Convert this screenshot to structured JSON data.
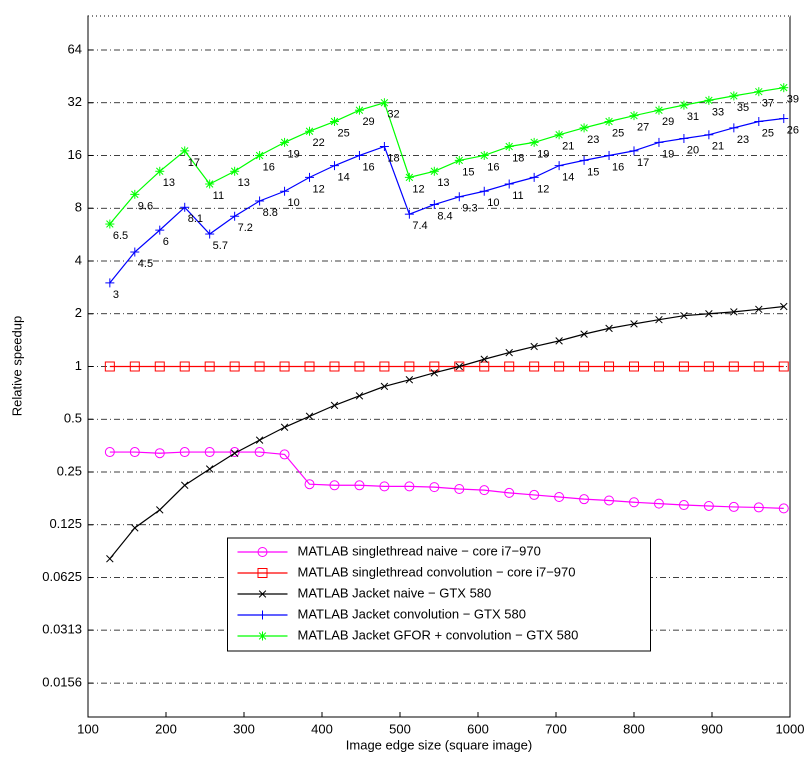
{
  "chart_data": {
    "type": "line",
    "x_label": "Image edge size (square image)",
    "y_label": "Relative speedup",
    "yscale": "log",
    "grid": true,
    "legend_loc": "lower center",
    "xlim": [
      100,
      1000
    ],
    "xticks": [
      100,
      200,
      300,
      400,
      500,
      600,
      700,
      800,
      900,
      1000
    ],
    "ylim": [
      0.01,
      100
    ],
    "yticks": [
      0.0156,
      0.0313,
      0.0625,
      0.125,
      0.25,
      0.5,
      1,
      2,
      4,
      8,
      16,
      32,
      64
    ],
    "x": [
      128,
      160,
      192,
      224,
      256,
      288,
      320,
      352,
      384,
      416,
      448,
      480,
      512,
      544,
      576,
      608,
      640,
      672,
      704,
      736,
      768,
      800,
      832,
      864,
      896,
      928,
      960,
      992
    ],
    "series": [
      {
        "name": "MATLAB singlethread naive − core i7−970",
        "color": "#ff00ff",
        "marker": "o",
        "data_labels": false,
        "values": [
          0.325,
          0.325,
          0.32,
          0.325,
          0.325,
          0.325,
          0.325,
          0.315,
          0.213,
          0.21,
          0.21,
          0.207,
          0.207,
          0.205,
          0.2,
          0.197,
          0.19,
          0.185,
          0.18,
          0.175,
          0.172,
          0.168,
          0.165,
          0.162,
          0.16,
          0.158,
          0.157,
          0.155
        ]
      },
      {
        "name": "MATLAB singlethread convolution − core i7−970",
        "color": "#ff0000",
        "marker": "s",
        "data_labels": false,
        "values": [
          1,
          1,
          1,
          1,
          1,
          1,
          1,
          1,
          1,
          1,
          1,
          1,
          1,
          1,
          1,
          1,
          1,
          1,
          1,
          1,
          1,
          1,
          1,
          1,
          1,
          1,
          1,
          1
        ]
      },
      {
        "name": "MATLAB Jacket naive − GTX 580",
        "color": "#000000",
        "marker": "x",
        "data_labels": false,
        "values": [
          0.08,
          0.12,
          0.152,
          0.21,
          0.26,
          0.32,
          0.38,
          0.45,
          0.52,
          0.6,
          0.68,
          0.77,
          0.84,
          0.92,
          1,
          1.1,
          1.2,
          1.3,
          1.4,
          1.53,
          1.65,
          1.75,
          1.85,
          1.95,
          2.0,
          2.05,
          2.12,
          2.2
        ]
      },
      {
        "name": "MATLAB Jacket convolution − GTX 580",
        "color": "#0000ff",
        "marker": "+",
        "data_labels": true,
        "values": [
          3,
          4.5,
          6,
          8.1,
          5.7,
          7.2,
          8.8,
          10,
          12,
          14,
          16,
          18,
          7.4,
          8.4,
          9.3,
          10,
          11,
          12,
          14,
          15,
          16,
          17,
          19,
          20,
          21,
          23,
          25,
          26
        ]
      },
      {
        "name": "MATLAB Jacket GFOR + convolution − GTX 580",
        "color": "#00ff00",
        "marker": "*",
        "data_labels": true,
        "values": [
          6.5,
          9.6,
          13,
          17,
          11,
          13,
          16,
          19,
          22,
          25,
          29,
          32,
          12,
          13,
          15,
          16,
          18,
          19,
          21,
          23,
          25,
          27,
          29,
          31,
          33,
          35,
          37,
          39
        ]
      }
    ]
  }
}
